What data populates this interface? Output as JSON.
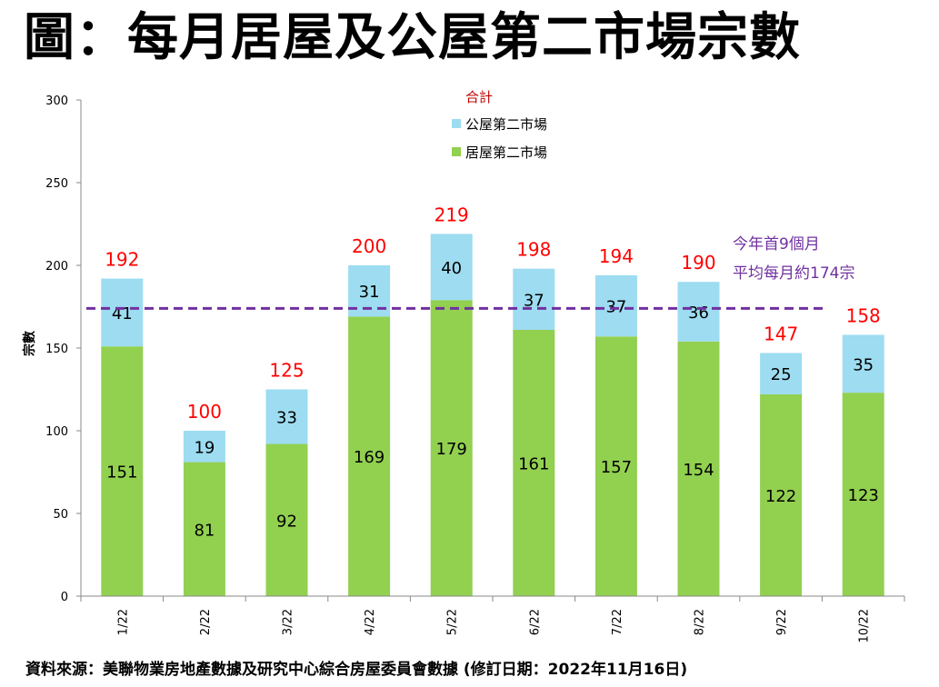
{
  "title": "圖：每月居屋及公屋第二市場宗數",
  "source": "資料來源：美聯物業房地產數據及研究中心綜合房屋委員會數據 (修訂日期：2022年11月16日)",
  "chart_data": {
    "type": "bar",
    "stacked": true,
    "categories": [
      "1/22",
      "2/22",
      "3/22",
      "4/22",
      "5/22",
      "6/22",
      "7/22",
      "8/22",
      "9/22",
      "10/22"
    ],
    "series": [
      {
        "name": "居屋第二市場",
        "color": "#92d050",
        "values": [
          151,
          81,
          92,
          169,
          179,
          161,
          157,
          154,
          122,
          123
        ]
      },
      {
        "name": "公屋第二市場",
        "color": "#9ddcf1",
        "values": [
          41,
          19,
          33,
          31,
          40,
          37,
          37,
          36,
          25,
          35
        ]
      }
    ],
    "totals": [
      192,
      100,
      125,
      200,
      219,
      198,
      194,
      190,
      147,
      158
    ],
    "legend_title": "合計",
    "legend_position": "top-center",
    "ylabel": "宗數",
    "xlabel": "",
    "ylim": [
      0,
      300
    ],
    "yticks": [
      0,
      50,
      100,
      150,
      200,
      250,
      300
    ],
    "average_line": {
      "value": 174,
      "color": "#7030a0",
      "style": "dashed",
      "label_line1": "今年首9個月",
      "label_line2": "平均每月約174宗"
    }
  }
}
